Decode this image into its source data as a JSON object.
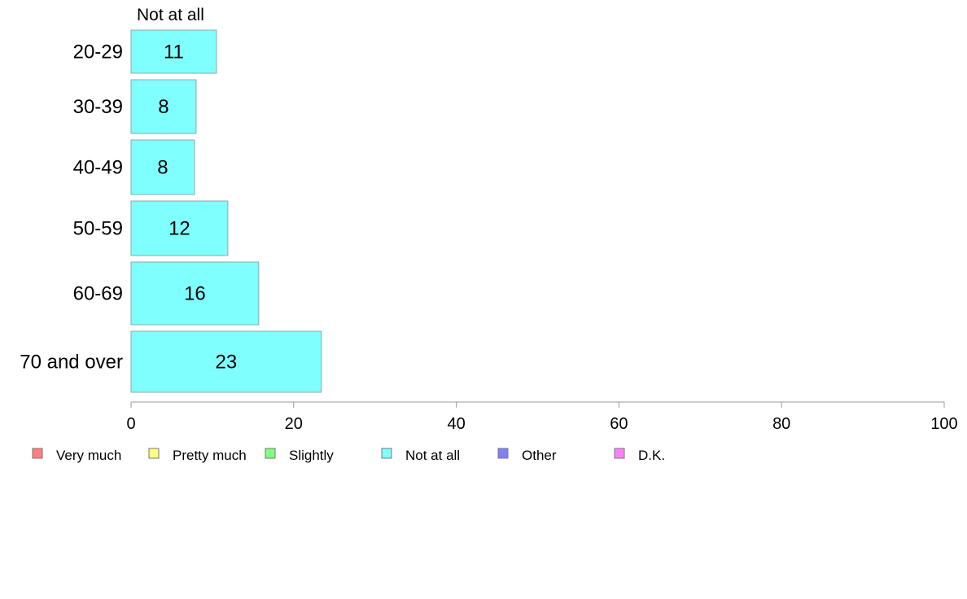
{
  "chart_data": {
    "type": "bar",
    "orientation": "horizontal",
    "series_header": "Not at all",
    "categories": [
      "20-29",
      "30-39",
      "40-49",
      "50-59",
      "60-69",
      "70 and over"
    ],
    "series": [
      {
        "name": "Not at all",
        "values": [
          10.5,
          8,
          7.8,
          11.9,
          15.7,
          23.4
        ],
        "labels": [
          "11",
          "8",
          "8",
          "12",
          "16",
          "23"
        ],
        "color": "#80ffff"
      }
    ],
    "xlim": [
      0,
      100
    ],
    "xticks": [
      "0",
      "20",
      "40",
      "60",
      "80",
      "100"
    ],
    "xlabel": "",
    "ylabel": "",
    "grid": false,
    "legend": {
      "position": "bottom",
      "items": [
        {
          "label": "Very much",
          "color": "#ff8080"
        },
        {
          "label": "Pretty much",
          "color": "#ffff80"
        },
        {
          "label": "Slightly",
          "color": "#80ff80"
        },
        {
          "label": "Not at all",
          "color": "#80ffff"
        },
        {
          "label": "Other",
          "color": "#8080ff"
        },
        {
          "label": "D.K.",
          "color": "#ff80ff"
        }
      ]
    }
  }
}
